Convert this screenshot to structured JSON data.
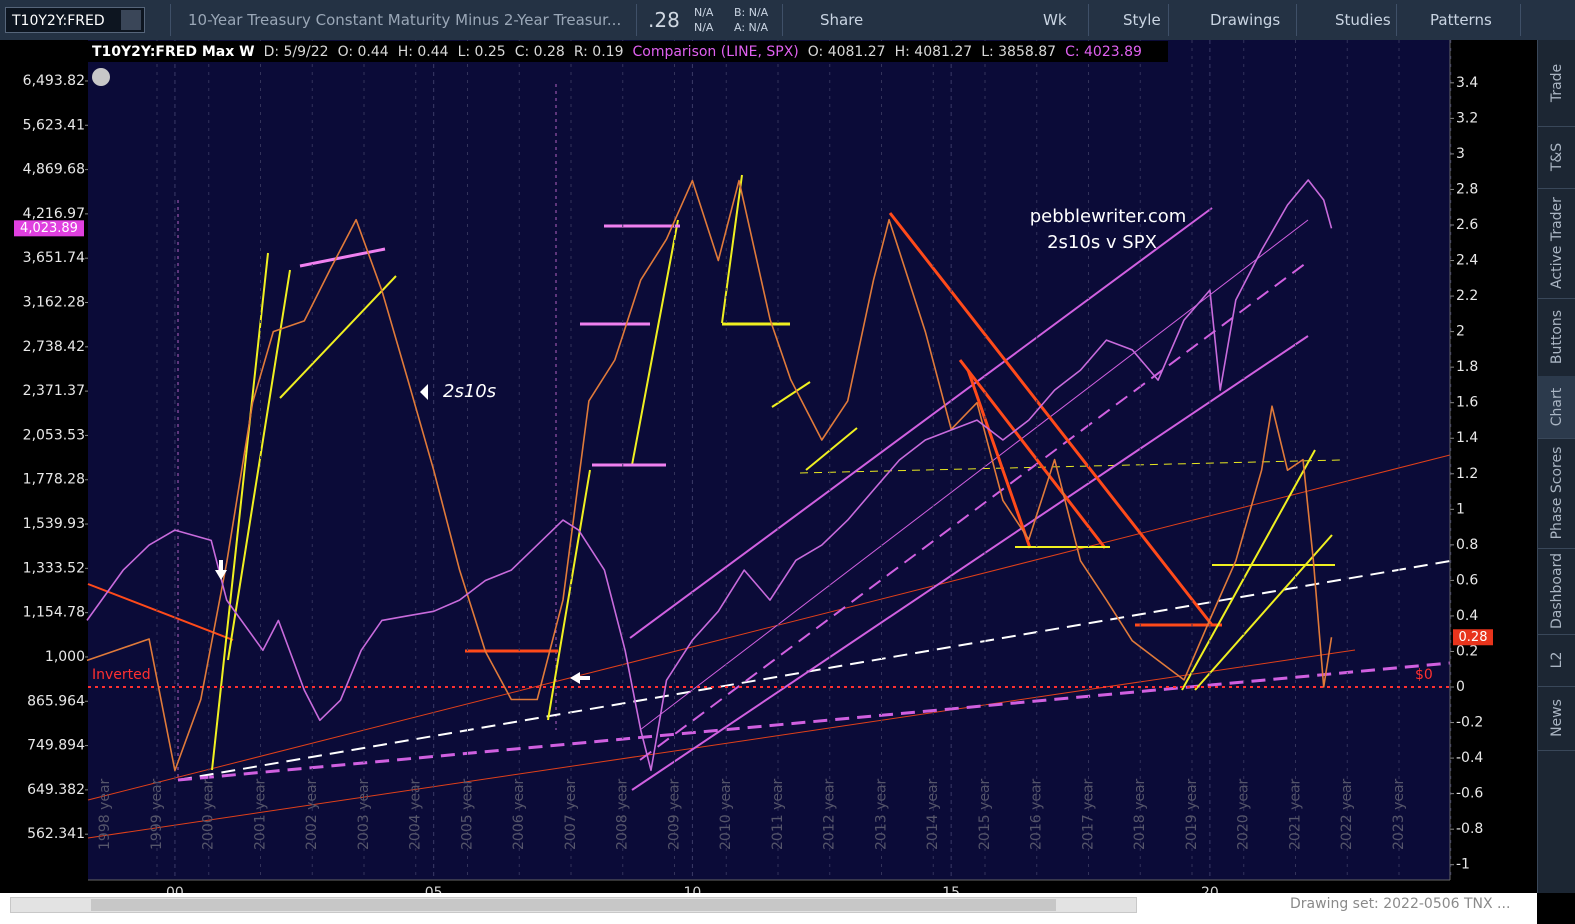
{
  "toolbar": {
    "symbol": "T10Y2Y:FRED",
    "description": "10-Year Treasury Constant Maturity Minus 2-Year Treasur...",
    "last": ".28",
    "change": [
      "N/A",
      "N/A"
    ],
    "bid": "B: N/A",
    "ask": "A: N/A",
    "buttons": [
      "Share",
      "Wk",
      "Style",
      "Drawings",
      "Studies",
      "Patterns"
    ]
  },
  "info_bar": {
    "title": "T10Y2Y:FRED Max W",
    "items": [
      "D: 5/9/22",
      "O: 0.44",
      "H: 0.44",
      "L: 0.25",
      "C: 0.28",
      "R: 0.19"
    ],
    "comparison": "Comparison (LINE, SPX)",
    "comparison_items": [
      "O: 4081.27",
      "H: 4081.27",
      "L: 3858.87",
      "C: 4023.89"
    ]
  },
  "chart_data": {
    "type": "line",
    "xlim": [
      1998.32,
      2024.64
    ],
    "xticks": [
      {
        "value": 2000,
        "label": "00"
      },
      {
        "value": 2005,
        "label": "05"
      },
      {
        "value": 2010,
        "label": "10"
      },
      {
        "value": 2015,
        "label": "15"
      },
      {
        "value": 2020,
        "label": "20"
      }
    ],
    "ylim": [
      484.6,
      7418
    ],
    "log_scale": true,
    "yticks": [
      {
        "value": 6493.82,
        "label": "6,493.82"
      },
      {
        "value": 5623.41,
        "label": "5,623.41"
      },
      {
        "value": 4869.68,
        "label": "4,869.68"
      },
      {
        "value": 4216.97,
        "label": "4,216.97"
      },
      {
        "value": 3651.74,
        "label": "3,651.74"
      },
      {
        "value": 3162.28,
        "label": "3,162.28"
      },
      {
        "value": 2738.42,
        "label": "2,738.42"
      },
      {
        "value": 2371.37,
        "label": "2,371.37"
      },
      {
        "value": 2053.53,
        "label": "2,053.53"
      },
      {
        "value": 1778.28,
        "label": "1,778.28"
      },
      {
        "value": 1539.93,
        "label": "1,539.93"
      },
      {
        "value": 1333.52,
        "label": "1,333.52"
      },
      {
        "value": 1154.78,
        "label": "1,154.78"
      },
      {
        "value": 1000,
        "label": "1,000"
      },
      865.964,
      749.894,
      649.382,
      562.341
    ],
    "y2lim": [
      -1.086,
      3.641
    ],
    "y2ticks": [
      3.4,
      3.2,
      3,
      2.8,
      2.6,
      2.4,
      2.2,
      2,
      1.8,
      1.6,
      1.4,
      1.2,
      1,
      0.8,
      0.6,
      0.4,
      0.2,
      0,
      -0.2,
      -0.4,
      -0.6,
      -0.8,
      -1
    ],
    "series": [
      {
        "color": "#e07a3a",
        "axis": "y2",
        "x": [
          1998.3,
          1998.8,
          1999.5,
          2000.0,
          2000.5,
          2001.0,
          2001.5,
          2001.9,
          2002.5,
          2003.0,
          2003.5,
          2004.0,
          2004.5,
          2005.0,
          2005.5,
          2006.0,
          2006.5,
          2007.0,
          2007.5,
          2008.0,
          2008.5,
          2009.0,
          2009.5,
          2010.0,
          2010.5,
          2010.9,
          2011.5,
          2011.9,
          2012.5,
          2013.0,
          2013.5,
          2013.8,
          2014.5,
          2015.0,
          2015.5,
          2016.0,
          2016.5,
          2017.0,
          2017.5,
          2018.0,
          2018.5,
          2019.0,
          2019.5,
          2020.0,
          2020.5,
          2021.0,
          2021.2,
          2021.5,
          2021.8,
          2022.0,
          2022.2,
          2022.35
        ],
        "values": [
          0.15,
          0.2,
          0.27,
          -0.47,
          -0.07,
          0.7,
          1.6,
          2.0,
          2.06,
          2.35,
          2.63,
          2.23,
          1.73,
          1.22,
          0.66,
          0.2,
          -0.07,
          -0.07,
          0.49,
          1.61,
          1.84,
          2.29,
          2.52,
          2.85,
          2.4,
          2.85,
          2.07,
          1.73,
          1.39,
          1.61,
          2.29,
          2.63,
          2.0,
          1.45,
          1.6,
          1.05,
          0.83,
          1.28,
          0.71,
          0.49,
          0.26,
          0.15,
          0.04,
          0.38,
          0.71,
          1.22,
          1.58,
          1.22,
          1.28,
          0.71,
          0.0,
          0.28
        ]
      },
      {
        "color": "#c86bdc",
        "x": [
          1998.3,
          1999.0,
          1999.5,
          2000.0,
          2000.7,
          2001.0,
          2001.7,
          2002.0,
          2002.5,
          2002.8,
          2003.2,
          2003.6,
          2004.0,
          2004.5,
          2005.0,
          2005.5,
          2006.0,
          2006.5,
          2007.0,
          2007.5,
          2007.8,
          2008.3,
          2008.7,
          2009.0,
          2009.2,
          2009.5,
          2010.0,
          2010.5,
          2011.0,
          2011.5,
          2012.0,
          2012.5,
          2013.0,
          2013.5,
          2014.0,
          2014.5,
          2015.0,
          2015.5,
          2016.0,
          2016.5,
          2017.0,
          2017.5,
          2018.0,
          2018.5,
          2019.0,
          2019.5,
          2020.0,
          2020.2,
          2020.5,
          2021.0,
          2021.5,
          2021.9,
          2022.2,
          2022.35
        ],
        "values": [
          1126,
          1326,
          1438,
          1510,
          1460,
          1203,
          1022,
          1126,
          898,
          814,
          869,
          1022,
          1126,
          1143,
          1160,
          1203,
          1282,
          1326,
          1438,
          1560,
          1510,
          1326,
          1022,
          789,
          692,
          927,
          1056,
          1160,
          1326,
          1203,
          1369,
          1438,
          1560,
          1720,
          1896,
          2023,
          2090,
          2158,
          2023,
          2158,
          2379,
          2539,
          2799,
          2711,
          2458,
          2987,
          3292,
          2379,
          3188,
          3750,
          4341,
          4707,
          4412,
          4023.89
        ]
      }
    ],
    "last_values": {
      "y": {
        "value": 4023.89,
        "label": "4,023.89"
      },
      "y2": 0.28
    },
    "annotations": [
      "pebblewriter.com",
      "2s10s v SPX",
      "2s10s",
      "Inverted",
      "$0"
    ],
    "year_labels": [
      "1998 year",
      "1999 year",
      "2000 year",
      "2001 year",
      "2002 year",
      "2003 year",
      "2004 year",
      "2005 year",
      "2006 year",
      "2007 year",
      "2008 year",
      "2009 year",
      "2010 year",
      "2011 year",
      "2012 year",
      "2013 year",
      "2014 year",
      "2015 year",
      "2016 year",
      "2017 year",
      "2018 year",
      "2019 year",
      "2020 year",
      "2021 year",
      "2022 year",
      "2023 year"
    ]
  },
  "sidebar_tabs": [
    "Trade",
    "T&S",
    "Active Trader",
    "Buttons",
    "Chart",
    "Phase Scores",
    "Dashboard",
    "L2",
    "News"
  ],
  "status": {
    "drawing_set": "Drawing set: 2022-0506 TNX ..."
  }
}
